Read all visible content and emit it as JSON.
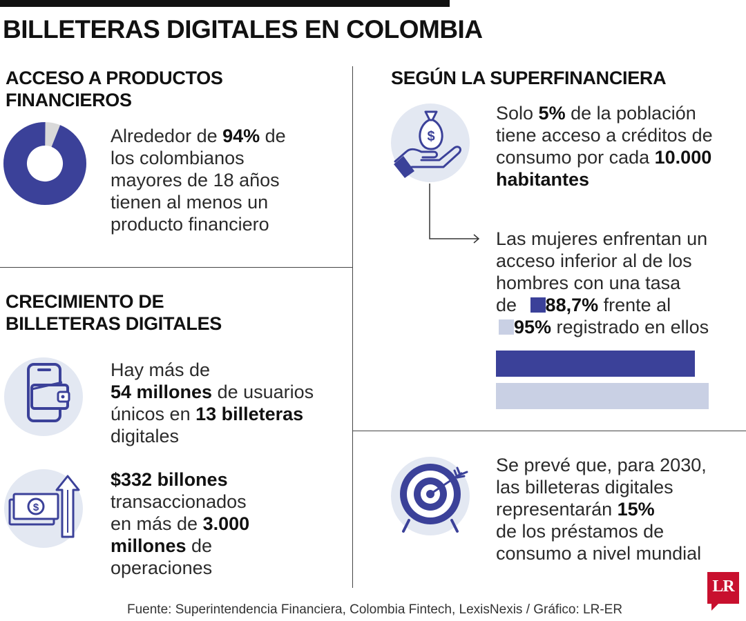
{
  "title": "BILLETERAS DIGITALES EN COLOMBIA",
  "colors": {
    "accent": "#3b4199",
    "light": "#c9d0e4",
    "icon_bg": "#e3e8f2",
    "logo": "#c8102e"
  },
  "acceso": {
    "heading_1": "ACCESO A PRODUCTOS",
    "heading_2": "FINANCIEROS",
    "donut_percent": 94,
    "t1a": "Alrededor de ",
    "t1b": "94%",
    "t1c": " de",
    "t2": "los colombianos",
    "t3": "mayores de 18 años",
    "t4": "tienen al menos un",
    "t5": "producto financiero"
  },
  "crecimiento": {
    "heading_1": "CRECIMIENTO DE",
    "heading_2": "BILLETERAS DIGITALES",
    "icon_1": "wallet-phone-icon",
    "a1": "Hay más de",
    "a2b": "54 millones",
    "a2": " de usuarios",
    "a3": "únicos en ",
    "a3b": "13 billeteras",
    "a4": "digitales",
    "icon_2": "money-growth-icon",
    "b1b": "$332 billones",
    "b2": "transaccionados",
    "b3": "en más de ",
    "b3b": "3.000",
    "b4b": "millones",
    "b4": " de",
    "b5": "operaciones"
  },
  "superfinanciera": {
    "heading": "SEGÚN LA SUPERFINANCIERA",
    "icon": "money-bag-hand-icon",
    "s1a": "Solo ",
    "s1b": "5%",
    "s1c": " de la población",
    "s2": "tiene acceso a créditos de",
    "s3a": "consumo por cada ",
    "s3b": "10.000",
    "s4b": "habitantes",
    "m1": "Las mujeres enfrentan un",
    "m2": "acceso inferior al de los",
    "m3": "hombres con una tasa",
    "m4a": "de ",
    "m4b": "88,7%",
    "m4c": " frente al",
    "m5b": "95%",
    "m5c": " registrado en ellos",
    "bars": [
      {
        "label": "mujeres",
        "value": 88.7
      },
      {
        "label": "hombres",
        "value": 95
      }
    ]
  },
  "prevision": {
    "icon": "target-icon",
    "p1": "Se prevé que, para 2030,",
    "p2": "las billeteras digitales",
    "p3a": "representarán ",
    "p3b": "15%",
    "p4": "de los préstamos de",
    "p5": "consumo a nivel mundial"
  },
  "source": "Fuente: Superintendencia Financiera, Colombia Fintech, LexisNexis / Gráfico: LR-ER",
  "logo_text": "LR"
}
